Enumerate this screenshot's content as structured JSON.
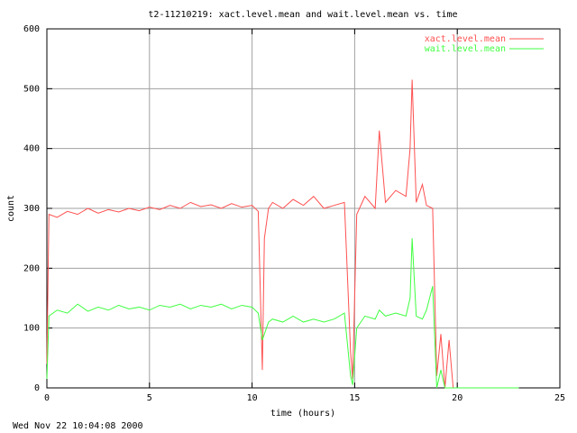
{
  "chart_data": {
    "type": "line",
    "title": "t2-11210219: xact.level.mean and wait.level.mean vs. time",
    "xlabel": "time (hours)",
    "ylabel": "count",
    "footer": "Wed Nov 22 10:04:08 2000",
    "x": [
      0,
      0.1,
      0.5,
      1,
      1.5,
      2,
      2.5,
      3,
      3.5,
      4,
      4.5,
      5,
      5.5,
      6,
      6.5,
      7,
      7.5,
      8,
      8.5,
      9,
      9.5,
      10,
      10.3,
      10.5,
      10.6,
      10.8,
      11,
      11.5,
      12,
      12.5,
      13,
      13.5,
      14,
      14.5,
      14.8,
      14.9,
      15.1,
      15.5,
      16,
      16.2,
      16.5,
      17,
      17.5,
      17.7,
      17.8,
      18,
      18.3,
      18.5,
      18.8,
      19,
      19.2,
      19.4,
      19.6,
      19.8,
      20,
      20.5,
      21,
      22,
      23
    ],
    "series": [
      {
        "name": "xact.level.mean",
        "color": "#ff5050",
        "values": [
          40,
          290,
          285,
          295,
          290,
          300,
          292,
          298,
          294,
          300,
          296,
          302,
          298,
          305,
          300,
          310,
          303,
          306,
          300,
          308,
          302,
          305,
          295,
          30,
          250,
          300,
          310,
          300,
          315,
          305,
          320,
          300,
          305,
          310,
          60,
          15,
          290,
          320,
          300,
          430,
          310,
          330,
          320,
          400,
          515,
          310,
          340,
          305,
          300,
          20,
          90,
          0,
          80,
          0,
          0,
          0,
          0,
          0,
          0
        ]
      },
      {
        "name": "wait.level.mean",
        "color": "#40ff40",
        "values": [
          15,
          120,
          130,
          125,
          140,
          128,
          135,
          130,
          138,
          132,
          135,
          130,
          138,
          135,
          140,
          132,
          138,
          135,
          140,
          132,
          138,
          135,
          125,
          80,
          90,
          110,
          115,
          110,
          120,
          110,
          115,
          110,
          115,
          125,
          20,
          5,
          100,
          120,
          115,
          130,
          120,
          125,
          120,
          150,
          250,
          120,
          115,
          130,
          170,
          0,
          30,
          0,
          0,
          0,
          0,
          0,
          0,
          0,
          0
        ]
      }
    ],
    "xlim": [
      0,
      25
    ],
    "xticks": [
      0,
      5,
      10,
      15,
      20,
      25
    ],
    "ylim": [
      0,
      600
    ],
    "yticks": [
      0,
      100,
      200,
      300,
      400,
      500,
      600
    ],
    "grid": true,
    "legend": "top-right"
  }
}
